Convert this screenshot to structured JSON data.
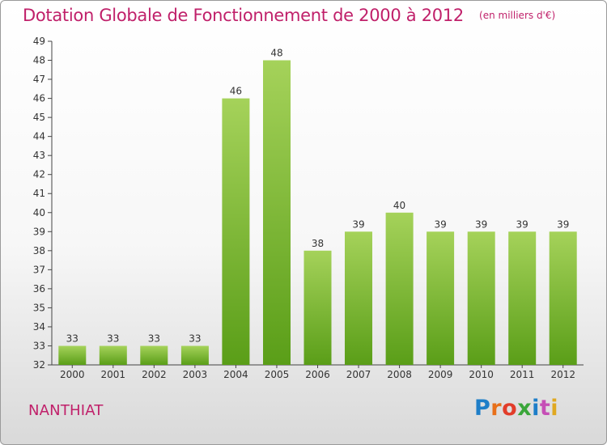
{
  "header": {
    "title": "Dotation Globale de Fonctionnement de 2000 à 2012",
    "unit": "(en milliers d'€)"
  },
  "footer": {
    "commune": "NANTHIAT",
    "logo_letters": [
      "P",
      "r",
      "o",
      "x",
      "i",
      "t",
      "i"
    ]
  },
  "colors": {
    "title": "#c0206a",
    "bar_light": "#a5d25a",
    "bar_dark": "#5a9e18",
    "axis": "#444444",
    "grid": "#cccccc"
  },
  "chart_data": {
    "type": "bar",
    "title": "Dotation Globale de Fonctionnement de 2000 à 2012",
    "subtitle": "(en milliers d'€)",
    "xlabel": "",
    "ylabel": "",
    "categories": [
      "2000",
      "2001",
      "2002",
      "2003",
      "2004",
      "2005",
      "2006",
      "2007",
      "2008",
      "2009",
      "2010",
      "2011",
      "2012"
    ],
    "values": [
      33,
      33,
      33,
      33,
      46,
      48,
      38,
      39,
      40,
      39,
      39,
      39,
      39
    ],
    "data_labels": [
      "33",
      "33",
      "33",
      "33",
      "46",
      "48",
      "38",
      "39",
      "40",
      "39",
      "39",
      "39",
      "39"
    ],
    "ylim": [
      32,
      49
    ],
    "yticks": [
      "32",
      "33",
      "34",
      "35",
      "36",
      "37",
      "38",
      "39",
      "40",
      "41",
      "42",
      "43",
      "44",
      "45",
      "46",
      "47",
      "48",
      "49"
    ],
    "grid": false,
    "legend": "none"
  }
}
